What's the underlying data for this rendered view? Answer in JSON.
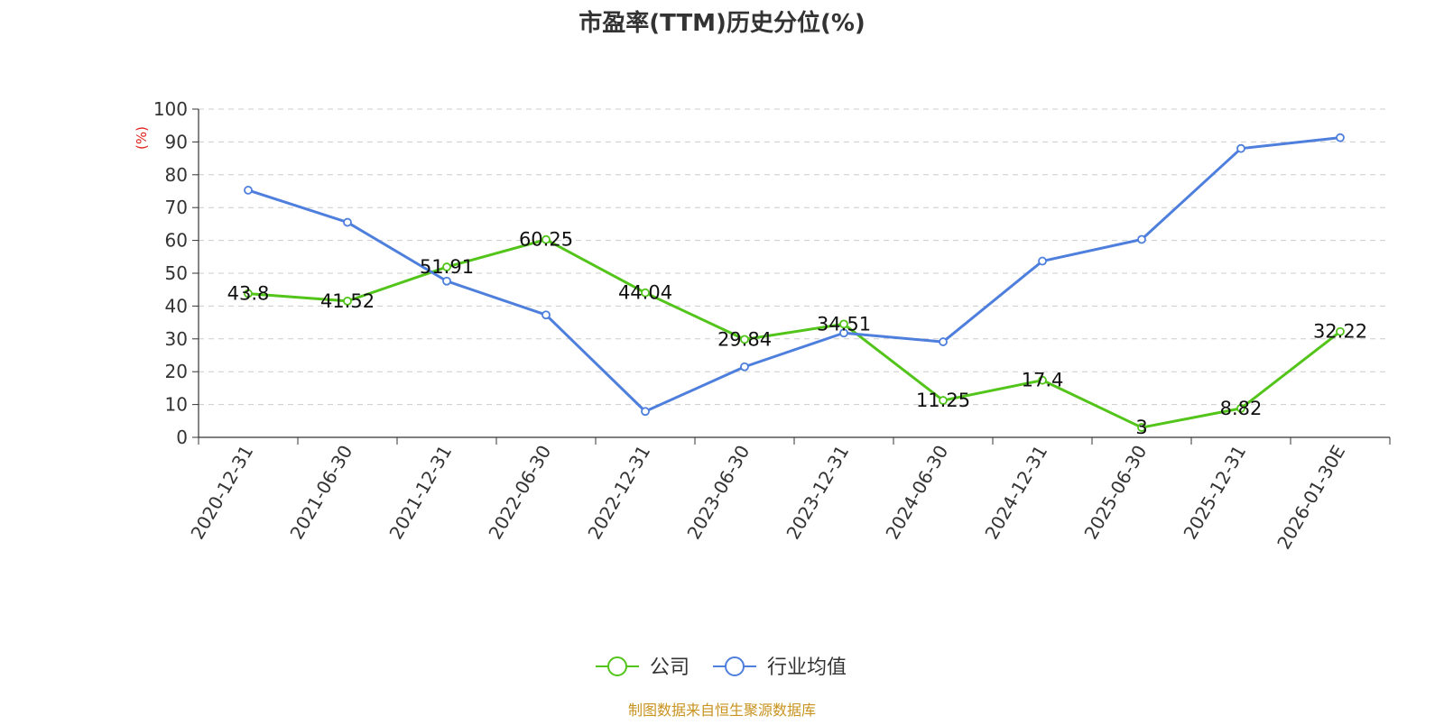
{
  "source_text": "制图数据来自恒生聚源数据库",
  "colors": {
    "company": "#52c41a",
    "industry": "#4e7fdd",
    "source": "#c8931f",
    "axis_unit": "#e0201b",
    "grid": "#cccccc",
    "axis": "#333333"
  },
  "chart_data": {
    "type": "line",
    "title": "市盈率(TTM)历史分位(%)",
    "ylabel": "(%)",
    "xlabel": "",
    "ylim": [
      0,
      100
    ],
    "yticks": [
      0,
      10,
      20,
      30,
      40,
      50,
      60,
      70,
      80,
      90,
      100
    ],
    "grid": true,
    "legend_position": "bottom-center",
    "categories": [
      "2020-12-31",
      "2021-06-30",
      "2021-12-31",
      "2022-06-30",
      "2022-12-31",
      "2023-06-30",
      "2023-12-31",
      "2024-06-30",
      "2024-12-31",
      "2025-06-30",
      "2025-12-31",
      "2026-01-30E"
    ],
    "series": [
      {
        "name": "公司",
        "color": "#52c41a",
        "values": [
          43.8,
          41.52,
          51.91,
          60.25,
          44.04,
          29.84,
          34.51,
          11.25,
          17.4,
          3,
          8.82,
          32.22
        ],
        "labels": [
          "43.8",
          "41.52",
          "51.91",
          "60.25",
          "44.04",
          "29.84",
          "34.51",
          "11.25",
          "17.4",
          "3",
          "8.82",
          "32.22"
        ]
      },
      {
        "name": "行业均值",
        "color": "#4e7fdd",
        "values": [
          75.3,
          65.5,
          47.6,
          37.3,
          7.9,
          21.5,
          31.8,
          29.1,
          53.7,
          60.3,
          88.0,
          91.3
        ]
      }
    ]
  }
}
